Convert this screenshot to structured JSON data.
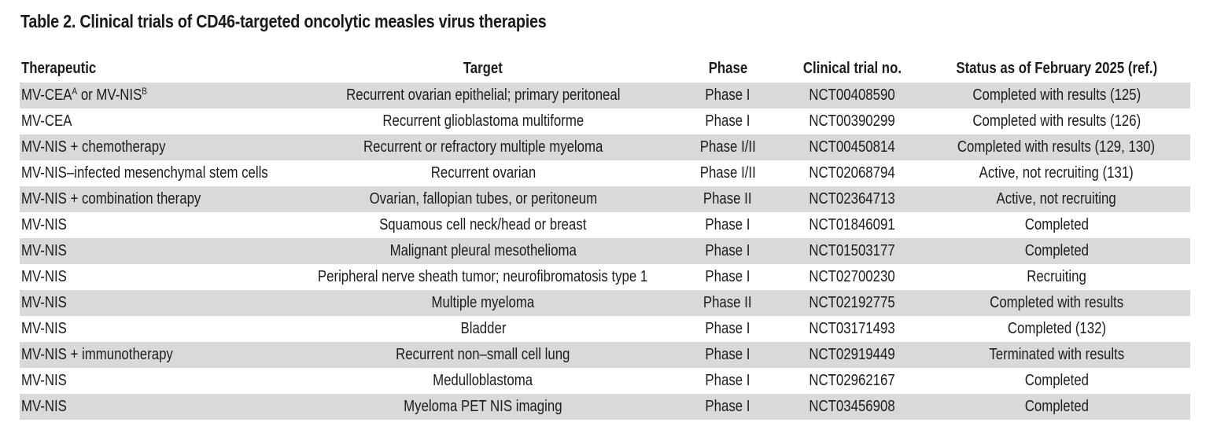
{
  "title": "Table 2. Clinical trials of CD46-targeted oncolytic measles virus therapies",
  "columns": {
    "therapeutic": "Therapeutic",
    "target": "Target",
    "phase": "Phase",
    "trial": "Clinical trial no.",
    "status": "Status as of February 2025 (ref.)"
  },
  "row_shading_color": "#d9d9d9",
  "rows": [
    {
      "therapeutic_a": "MV-CEA",
      "therapeutic_a_sup": "A",
      "therapeutic_b": " or MV-NIS",
      "therapeutic_b_sup": "B",
      "target": "Recurrent ovarian epithelial; primary peritoneal",
      "phase": "Phase I",
      "trial": "NCT00408590",
      "status": "Completed with results (125)"
    },
    {
      "therapeutic": "MV-CEA",
      "target": "Recurrent glioblastoma multiforme",
      "phase": "Phase I",
      "trial": "NCT00390299",
      "status": "Completed with results (126)"
    },
    {
      "therapeutic": "MV-NIS + chemotherapy",
      "target": "Recurrent or refractory multiple myeloma",
      "phase": "Phase I/II",
      "trial": "NCT00450814",
      "status": "Completed with results (129, 130)"
    },
    {
      "therapeutic": "MV-NIS–infected mesenchymal stem cells",
      "target": "Recurrent ovarian",
      "phase": "Phase I/II",
      "trial": "NCT02068794",
      "status": "Active, not recruiting (131)"
    },
    {
      "therapeutic": "MV-NIS + combination therapy",
      "target": "Ovarian, fallopian tubes, or peritoneum",
      "phase": "Phase II",
      "trial": "NCT02364713",
      "status": "Active, not recruiting"
    },
    {
      "therapeutic": "MV-NIS",
      "target": "Squamous cell neck/head or breast",
      "phase": "Phase I",
      "trial": "NCT01846091",
      "status": "Completed"
    },
    {
      "therapeutic": "MV-NIS",
      "target": "Malignant pleural mesothelioma",
      "phase": "Phase I",
      "trial": "NCT01503177",
      "status": "Completed"
    },
    {
      "therapeutic": "MV-NIS",
      "target": "Peripheral nerve sheath tumor; neurofibromatosis type 1",
      "phase": "Phase I",
      "trial": "NCT02700230",
      "status": "Recruiting"
    },
    {
      "therapeutic": "MV-NIS",
      "target": "Multiple myeloma",
      "phase": "Phase II",
      "trial": "NCT02192775",
      "status": "Completed with results"
    },
    {
      "therapeutic": "MV-NIS",
      "target": "Bladder",
      "phase": "Phase I",
      "trial": "NCT03171493",
      "status": "Completed (132)"
    },
    {
      "therapeutic": "MV-NIS + immunotherapy",
      "target": "Recurrent non–small cell lung",
      "phase": "Phase I",
      "trial": "NCT02919449",
      "status": "Terminated with results"
    },
    {
      "therapeutic": "MV-NIS",
      "target": "Medulloblastoma",
      "phase": "Phase I",
      "trial": "NCT02962167",
      "status": "Completed"
    },
    {
      "therapeutic": "MV-NIS",
      "target": "Myeloma PET NIS imaging",
      "phase": "Phase I",
      "trial": "NCT03456908",
      "status": "Completed"
    }
  ]
}
